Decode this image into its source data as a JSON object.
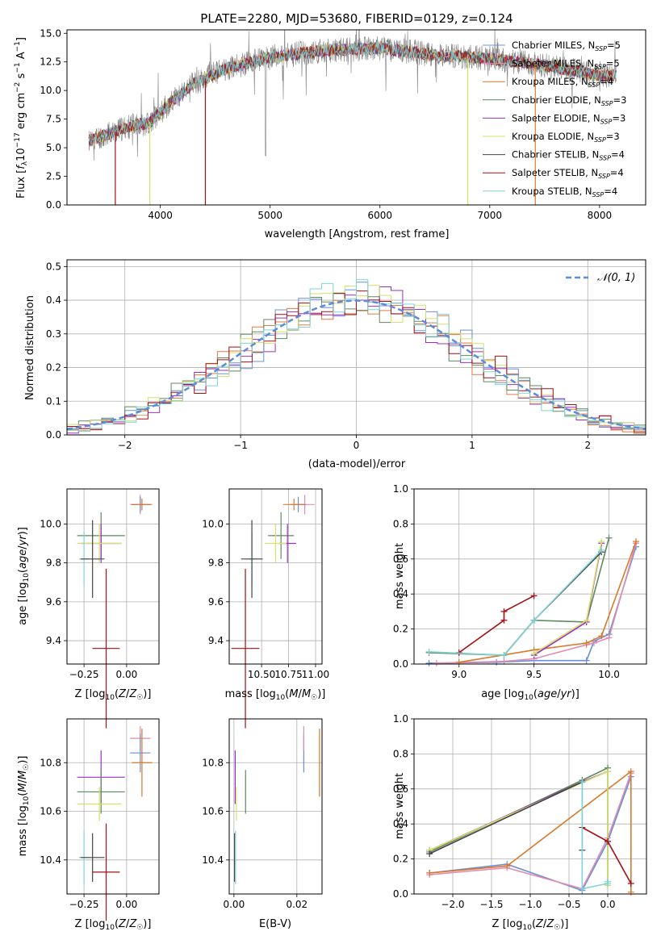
{
  "chart_data": [
    {
      "id": "spectrum",
      "type": "line",
      "title": "PLATE=2280, MJD=53680, FIBERID=0129, z=0.124",
      "xlabel": "wavelength [Angstrom, rest frame]",
      "ylabel": "Flux [f_λ 10^-17 erg cm^-2 s^-1 A^-1]",
      "xlim": [
        3150,
        8420
      ],
      "ylim": [
        0,
        15.3
      ],
      "xticks": [
        "4000",
        "5000",
        "6000",
        "7000",
        "8000"
      ],
      "yticks": [
        "0.0",
        "2.5",
        "5.0",
        "7.5",
        "10.0",
        "12.5",
        "15.0"
      ],
      "grid": false,
      "legend_position": "top-right",
      "legend": [
        {
          "label": "Chabrier MILES, N_SSP=5",
          "color": "#6a8fd9"
        },
        {
          "label": "Salpeter MILES, N_SSP=5",
          "color": "#e08bb0"
        },
        {
          "label": "Kroupa MILES, N_SSP=4",
          "color": "#d9792a"
        },
        {
          "label": "Chabrier ELODIE, N_SSP=3",
          "color": "#5e8a5e"
        },
        {
          "label": "Salpeter ELODIE, N_SSP=3",
          "color": "#9b30c0"
        },
        {
          "label": "Kroupa ELODIE, N_SSP=3",
          "color": "#d6e06a"
        },
        {
          "label": "Chabrier STELIB, N_SSP=4",
          "color": "#444444"
        },
        {
          "label": "Salpeter STELIB, N_SSP=4",
          "color": "#a50f15"
        },
        {
          "label": "Kroupa STELIB, N_SSP=4",
          "color": "#7fd4d8"
        }
      ],
      "observed_color": "#808080",
      "continuum_x": [
        3350,
        3500,
        3700,
        3900,
        4100,
        4300,
        4600,
        5000,
        5500,
        6000,
        6500,
        7000,
        7500,
        8000,
        8150
      ],
      "continuum_y": [
        5.6,
        6.1,
        6.8,
        7.2,
        9.0,
        10.6,
        11.9,
        12.9,
        13.5,
        13.7,
        13.1,
        12.8,
        12.2,
        11.3,
        11.3
      ],
      "model_spikes": [
        {
          "x": 3590,
          "color": "#a50f15"
        },
        {
          "x": 3905,
          "color": "#d6e06a"
        },
        {
          "x": 4410,
          "color": "#a50f15"
        },
        {
          "x": 6800,
          "color": "#d6e06a"
        },
        {
          "x": 7415,
          "color": "#d9792a"
        }
      ]
    },
    {
      "id": "residuals",
      "type": "histogram",
      "xlabel": "(data-model)/error",
      "ylabel": "Normed distribution",
      "xlim": [
        -2.5,
        2.5
      ],
      "ylim": [
        0,
        0.52
      ],
      "xticks": [
        "−2",
        "−1",
        "0",
        "1",
        "2"
      ],
      "yticks": [
        "0.0",
        "0.1",
        "0.2",
        "0.3",
        "0.4",
        "0.5"
      ],
      "grid": true,
      "legend_position": "top-right",
      "gaussian_label": "𝒩(0, 1)",
      "gaussian_color": "#5b8bd9",
      "bin_width": 0.1,
      "series": [
        {
          "color": "#6a8fd9",
          "mu": 0.03,
          "sigma": 1.0,
          "seed": 1
        },
        {
          "color": "#e07b45",
          "mu": 0.0,
          "sigma": 0.98,
          "seed": 2
        },
        {
          "color": "#5e8a5e",
          "mu": -0.02,
          "sigma": 1.02,
          "seed": 3
        },
        {
          "color": "#9b30c0",
          "mu": 0.02,
          "sigma": 0.99,
          "seed": 4
        },
        {
          "color": "#d6e06a",
          "mu": -0.01,
          "sigma": 1.0,
          "seed": 5
        },
        {
          "color": "#a50f15",
          "mu": 0.04,
          "sigma": 1.01,
          "seed": 6
        },
        {
          "color": "#7fd4d8",
          "mu": 0.0,
          "sigma": 0.97,
          "seed": 7
        }
      ]
    },
    {
      "id": "age-vs-z",
      "type": "errorbar",
      "xlabel": "Z [log10(Z/Z☉)]",
      "ylabel": "age  [log10(age/yr)]",
      "xlim": [
        -0.35,
        0.19
      ],
      "ylim": [
        9.28,
        10.18
      ],
      "xticks": [
        {
          "v": -0.25,
          "t": "−0.25"
        },
        {
          "v": 0.0,
          "t": "0.00"
        }
      ],
      "yticks": [
        {
          "v": 9.4,
          "t": "9.4"
        },
        {
          "v": 9.6,
          "t": "9.6"
        },
        {
          "v": 9.8,
          "t": "9.8"
        },
        {
          "v": 10.0,
          "t": "10.0"
        }
      ],
      "grid": true,
      "points": [
        {
          "x": 0.08,
          "y": 10.1,
          "xerr": 0.06,
          "yerr": 0.05,
          "color": "#e08bb0"
        },
        {
          "x": 0.08,
          "y": 10.1,
          "xerr": 0.05,
          "yerr": 0.04,
          "color": "#6a8fd9"
        },
        {
          "x": 0.09,
          "y": 10.1,
          "xerr": 0.06,
          "yerr": 0.03,
          "color": "#d9792a"
        },
        {
          "x": -0.15,
          "y": 9.94,
          "xerr": 0.14,
          "yerr": 0.12,
          "color": "#5e8a5e"
        },
        {
          "x": -0.15,
          "y": 9.9,
          "xerr": 0.12,
          "yerr": 0.1,
          "color": "#9b30c0"
        },
        {
          "x": -0.16,
          "y": 9.9,
          "xerr": 0.13,
          "yerr": 0.1,
          "color": "#d6e06a"
        },
        {
          "x": -0.25,
          "y": 9.82,
          "xerr": 0.03,
          "yerr": 0.14,
          "color": "#7fd4d8"
        },
        {
          "x": -0.2,
          "y": 9.82,
          "xerr": 0.07,
          "yerr": 0.2,
          "color": "#444444"
        },
        {
          "x": -0.12,
          "y": 9.36,
          "xerr": 0.08,
          "yerr": 0.41,
          "color": "#a50f15"
        }
      ]
    },
    {
      "id": "age-vs-mass",
      "type": "errorbar",
      "xlabel": "mass [log10(M/M☉)]",
      "ylabel": "",
      "xlim": [
        10.2,
        11.06
      ],
      "ylim": [
        9.28,
        10.18
      ],
      "xticks": [
        {
          "v": 10.5,
          "t": "10.50"
        },
        {
          "v": 10.75,
          "t": "10.75"
        },
        {
          "v": 11.0,
          "t": "11.00"
        }
      ],
      "yticks": [
        {
          "v": 9.4,
          "t": "9.4"
        },
        {
          "v": 9.6,
          "t": "9.6"
        },
        {
          "v": 9.8,
          "t": "9.8"
        },
        {
          "v": 10.0,
          "t": "10.0"
        }
      ],
      "grid": true,
      "points": [
        {
          "x": 10.9,
          "y": 10.1,
          "xerr": 0.09,
          "yerr": 0.05,
          "color": "#e08bb0"
        },
        {
          "x": 10.84,
          "y": 10.1,
          "xerr": 0.07,
          "yerr": 0.04,
          "color": "#6a8fd9"
        },
        {
          "x": 10.8,
          "y": 10.1,
          "xerr": 0.1,
          "yerr": 0.03,
          "color": "#d9792a"
        },
        {
          "x": 10.68,
          "y": 9.94,
          "xerr": 0.12,
          "yerr": 0.12,
          "color": "#5e8a5e"
        },
        {
          "x": 10.74,
          "y": 9.9,
          "xerr": 0.08,
          "yerr": 0.1,
          "color": "#9b30c0"
        },
        {
          "x": 10.63,
          "y": 9.9,
          "xerr": 0.1,
          "yerr": 0.1,
          "color": "#d6e06a"
        },
        {
          "x": 10.41,
          "y": 9.82,
          "xerr": 0.04,
          "yerr": 0.14,
          "color": "#7fd4d8"
        },
        {
          "x": 10.41,
          "y": 9.82,
          "xerr": 0.1,
          "yerr": 0.2,
          "color": "#444444"
        },
        {
          "x": 10.35,
          "y": 9.36,
          "xerr": 0.13,
          "yerr": 0.41,
          "color": "#a50f15"
        }
      ]
    },
    {
      "id": "mass-weight-vs-age",
      "type": "line",
      "xlabel": "age  [log10(age/yr)]",
      "ylabel": "mass weight",
      "xlim": [
        8.7,
        10.25
      ],
      "ylim": [
        0,
        1.0
      ],
      "xticks": [
        {
          "v": 9.0,
          "t": "9.0"
        },
        {
          "v": 9.5,
          "t": "9.5"
        },
        {
          "v": 10.0,
          "t": "10.0"
        }
      ],
      "yticks": [
        {
          "v": 0,
          "t": "0.0"
        },
        {
          "v": 0.2,
          "t": "0.2"
        },
        {
          "v": 0.4,
          "t": "0.4"
        },
        {
          "v": 0.6,
          "t": "0.6"
        },
        {
          "v": 0.8,
          "t": "0.8"
        },
        {
          "v": 1.0,
          "t": "1.0"
        }
      ],
      "grid": true,
      "series": [
        {
          "color": "#6a8fd9",
          "x": [
            8.8,
            9.25,
            9.5,
            9.85,
            9.9,
            10.0,
            10.18
          ],
          "y": [
            0.005,
            0.01,
            0.02,
            0.02,
            0.13,
            0.17,
            0.67
          ]
        },
        {
          "color": "#e08bb0",
          "x": [
            8.85,
            9.3,
            9.5,
            9.85,
            9.9,
            10.0,
            10.18
          ],
          "y": [
            0.005,
            0.015,
            0.03,
            0.11,
            0.12,
            0.15,
            0.69
          ]
        },
        {
          "color": "#d9792a",
          "x": [
            9.0,
            9.5,
            9.85,
            9.95,
            10.18
          ],
          "y": [
            0.01,
            0.08,
            0.12,
            0.16,
            0.7
          ]
        },
        {
          "color": "#5e8a5e",
          "x": [
            8.8,
            9.3,
            9.5,
            9.85,
            10.0
          ],
          "y": [
            0.065,
            0.05,
            0.25,
            0.24,
            0.72
          ]
        },
        {
          "color": "#9b30c0",
          "x": [
            9.5,
            9.85,
            9.95
          ],
          "y": [
            0.05,
            0.24,
            0.69
          ]
        },
        {
          "color": "#d6e06a",
          "x": [
            9.5,
            9.85,
            9.95
          ],
          "y": [
            0.06,
            0.25,
            0.7
          ]
        },
        {
          "color": "#444444",
          "x": [
            9.3,
            9.5,
            9.95
          ],
          "y": [
            0.05,
            0.25,
            0.64
          ]
        },
        {
          "color": "#a50f15",
          "x": [
            9.0,
            9.3,
            9.3,
            9.5
          ],
          "y": [
            0.065,
            0.25,
            0.3,
            0.39
          ]
        },
        {
          "color": "#7fd4d8",
          "x": [
            8.8,
            9.3,
            9.5,
            9.95
          ],
          "y": [
            0.07,
            0.05,
            0.25,
            0.65
          ]
        }
      ]
    },
    {
      "id": "mass-vs-z",
      "type": "errorbar",
      "xlabel": "Z [log10(Z/Z☉)]",
      "ylabel": "mass [log10(M/M☉)]",
      "xlim": [
        -0.35,
        0.19
      ],
      "ylim": [
        10.26,
        10.98
      ],
      "xticks": [
        {
          "v": -0.25,
          "t": "−0.25"
        },
        {
          "v": 0.0,
          "t": "0.00"
        }
      ],
      "yticks": [
        {
          "v": 10.4,
          "t": "10.4"
        },
        {
          "v": 10.6,
          "t": "10.6"
        },
        {
          "v": 10.8,
          "t": "10.8"
        }
      ],
      "grid": true,
      "points": [
        {
          "x": 0.08,
          "y": 10.9,
          "xerr": 0.06,
          "yerr": 0.05,
          "color": "#e08bb0"
        },
        {
          "x": 0.08,
          "y": 10.84,
          "xerr": 0.06,
          "yerr": 0.08,
          "color": "#6a8fd9"
        },
        {
          "x": 0.09,
          "y": 10.8,
          "xerr": 0.06,
          "yerr": 0.14,
          "color": "#d9792a"
        },
        {
          "x": -0.15,
          "y": 10.74,
          "xerr": 0.14,
          "yerr": 0.11,
          "color": "#9b30c0"
        },
        {
          "x": -0.15,
          "y": 10.68,
          "xerr": 0.14,
          "yerr": 0.09,
          "color": "#5e8a5e"
        },
        {
          "x": -0.16,
          "y": 10.63,
          "xerr": 0.13,
          "yerr": 0.07,
          "color": "#d6e06a"
        },
        {
          "x": -0.25,
          "y": 10.41,
          "xerr": 0.03,
          "yerr": 0.11,
          "color": "#7fd4d8"
        },
        {
          "x": -0.2,
          "y": 10.41,
          "xerr": 0.07,
          "yerr": 0.1,
          "color": "#444444"
        },
        {
          "x": -0.12,
          "y": 10.35,
          "xerr": 0.08,
          "yerr": 0.2,
          "color": "#a50f15"
        }
      ]
    },
    {
      "id": "mass-vs-ebv",
      "type": "errorbar",
      "xlabel": "E(B-V)",
      "ylabel": "",
      "xlim": [
        -0.0015,
        0.028
      ],
      "ylim": [
        10.26,
        10.98
      ],
      "xticks": [
        {
          "v": 0.0,
          "t": "0.00"
        },
        {
          "v": 0.02,
          "t": "0.02"
        }
      ],
      "yticks": [
        {
          "v": 10.4,
          "t": "10.4"
        },
        {
          "v": 10.6,
          "t": "10.6"
        },
        {
          "v": 10.8,
          "t": "10.8"
        }
      ],
      "grid": true,
      "points": [
        {
          "x": 0.0004,
          "y": 10.74,
          "xerr": 0,
          "yerr": 0.11,
          "color": "#9b30c0"
        },
        {
          "x": 0.0002,
          "y": 10.41,
          "xerr": 0,
          "yerr": 0.1,
          "color": "#444444"
        },
        {
          "x": 0.0005,
          "y": 10.41,
          "xerr": 0,
          "yerr": 0.11,
          "color": "#7fd4d8"
        },
        {
          "x": 0.0008,
          "y": 10.63,
          "xerr": 0,
          "yerr": 0.07,
          "color": "#d6e06a"
        },
        {
          "x": 0.0037,
          "y": 10.68,
          "xerr": 0,
          "yerr": 0.09,
          "color": "#5e8a5e"
        },
        {
          "x": 0.0222,
          "y": 10.84,
          "xerr": 0,
          "yerr": 0.08,
          "color": "#6a8fd9"
        },
        {
          "x": 0.0222,
          "y": 10.9,
          "xerr": 0,
          "yerr": 0.05,
          "color": "#e08bb0"
        },
        {
          "x": 0.0272,
          "y": 10.8,
          "xerr": 0,
          "yerr": 0.14,
          "color": "#d9792a"
        }
      ]
    },
    {
      "id": "mass-weight-vs-z",
      "type": "line",
      "xlabel": "Z [log10(Z/Z☉)]",
      "ylabel": "mass weight",
      "xlim": [
        -2.5,
        0.5
      ],
      "ylim": [
        0,
        1.0
      ],
      "xticks": [
        {
          "v": -2.0,
          "t": "−2.0"
        },
        {
          "v": -1.5,
          "t": "−1.5"
        },
        {
          "v": -1.0,
          "t": "−1.0"
        },
        {
          "v": -0.5,
          "t": "−0.5"
        },
        {
          "v": 0.0,
          "t": "0.0"
        }
      ],
      "yticks": [
        {
          "v": 0,
          "t": "0.0"
        },
        {
          "v": 0.2,
          "t": "0.2"
        },
        {
          "v": 0.4,
          "t": "0.4"
        },
        {
          "v": 0.6,
          "t": "0.6"
        },
        {
          "v": 0.8,
          "t": "0.8"
        },
        {
          "v": 1.0,
          "t": "1.0"
        }
      ],
      "grid": true,
      "series": [
        {
          "color": "#6a8fd9",
          "x": [
            -2.3,
            -1.3,
            -0.33,
            0.0,
            0.3
          ],
          "y": [
            0.12,
            0.17,
            0.02,
            0.3,
            0.67
          ]
        },
        {
          "color": "#e08bb0",
          "x": [
            -2.3,
            -1.3,
            -0.33,
            0.0,
            0.3
          ],
          "y": [
            0.11,
            0.15,
            0.03,
            0.32,
            0.69
          ]
        },
        {
          "color": "#d9792a",
          "x": [
            -2.3,
            -1.3,
            0.3,
            0.3
          ],
          "y": [
            0.12,
            0.16,
            0.7,
            0.01
          ]
        },
        {
          "color": "#5e8a5e",
          "x": [
            -2.3,
            -0.33,
            0.0,
            0.0
          ],
          "y": [
            0.24,
            0.65,
            0.72,
            0.05
          ]
        },
        {
          "color": "#9b30c0",
          "x": [
            -2.3,
            -0.33,
            0.0
          ],
          "y": [
            0.25,
            0.64,
            0.7
          ]
        },
        {
          "color": "#d6e06a",
          "x": [
            -2.3,
            0.0,
            0.0
          ],
          "y": [
            0.25,
            0.7,
            0.05
          ]
        },
        {
          "color": "#444444",
          "x": [
            -2.3,
            -0.33,
            -0.33
          ],
          "y": [
            0.23,
            0.64,
            0.25
          ]
        },
        {
          "color": "#a50f15",
          "x": [
            -0.33,
            0.0,
            0.3
          ],
          "y": [
            0.38,
            0.3,
            0.06
          ]
        },
        {
          "color": "#7fd4d8",
          "x": [
            -0.33,
            -0.33,
            0.0,
            0.0
          ],
          "y": [
            0.64,
            0.03,
            0.06,
            0.07
          ]
        }
      ]
    }
  ]
}
